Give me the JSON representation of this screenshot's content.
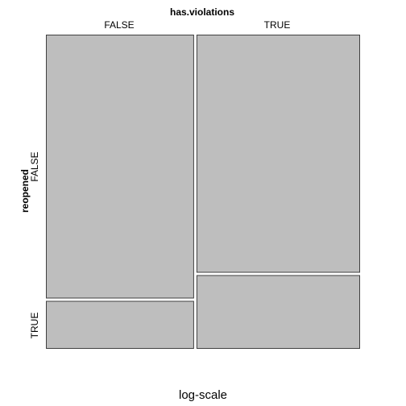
{
  "chart_data": {
    "type": "mosaic",
    "title": "",
    "subtitle": "log-scale",
    "x_variable": "has.violations",
    "y_variable": "reopened",
    "x_levels": [
      "FALSE",
      "TRUE"
    ],
    "y_levels": [
      "FALSE",
      "TRUE"
    ],
    "x_proportions": [
      0.475,
      0.525
    ],
    "cells": [
      {
        "x": "FALSE",
        "y": "FALSE",
        "proportion_within_x": 0.848
      },
      {
        "x": "FALSE",
        "y": "TRUE",
        "proportion_within_x": 0.152
      },
      {
        "x": "TRUE",
        "y": "FALSE",
        "proportion_within_x": 0.765
      },
      {
        "x": "TRUE",
        "y": "TRUE",
        "proportion_within_x": 0.235
      }
    ],
    "fill_color": "#bebebe",
    "border_color": "#404040"
  }
}
